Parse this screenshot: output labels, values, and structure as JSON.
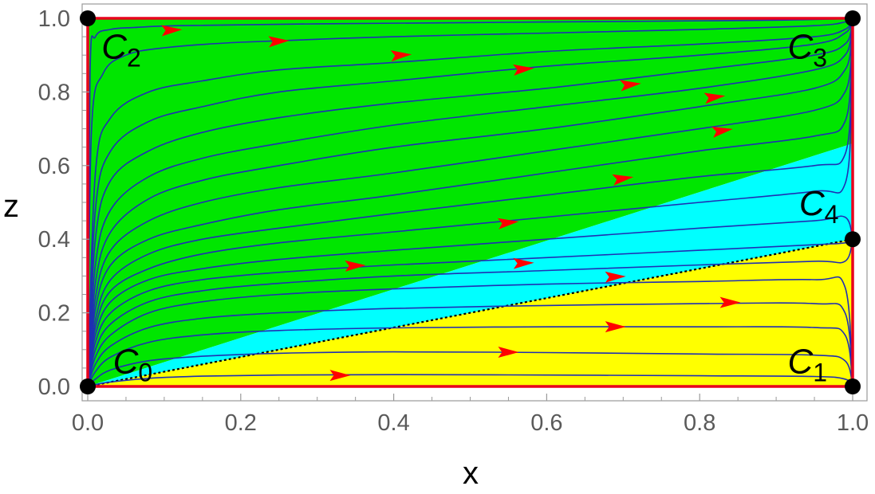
{
  "chart_data": {
    "type": "phase-portrait",
    "xlabel": "x",
    "ylabel": "z",
    "xlim": [
      0,
      1
    ],
    "ylim": [
      0,
      1
    ],
    "x_ticks": [
      "0.0",
      "0.2",
      "0.4",
      "0.6",
      "0.8",
      "1.0"
    ],
    "y_ticks": [
      "0.0",
      "0.2",
      "0.4",
      "0.6",
      "0.8",
      "1.0"
    ],
    "grid": false,
    "colors": {
      "green_region": "#00e600",
      "cyan_region": "#00ffff",
      "yellow_region": "#ffff00",
      "trajectory": "#1f2fb3",
      "arrow": "#ff0000",
      "boundary": "#e8001c",
      "separatrix": "#000000",
      "critical_point": "#000000"
    },
    "regions": [
      {
        "color": "green_region",
        "polygon": [
          [
            0,
            0
          ],
          [
            0,
            1
          ],
          [
            1,
            1
          ],
          [
            1,
            0.66
          ]
        ]
      },
      {
        "color": "cyan_region",
        "polygon": [
          [
            0,
            0
          ],
          [
            1,
            0.66
          ],
          [
            1,
            0.4
          ]
        ]
      },
      {
        "color": "yellow_region",
        "polygon": [
          [
            0,
            0
          ],
          [
            1,
            0.4
          ],
          [
            1,
            0
          ]
        ]
      }
    ],
    "separatrix": {
      "from": [
        0,
        0
      ],
      "to": [
        1,
        0.4
      ],
      "style": "dotted"
    },
    "critical_points": [
      {
        "label": "C",
        "sub": "0",
        "x": 0,
        "y": 0,
        "label_at": [
          0.033,
          0.07
        ]
      },
      {
        "label": "C",
        "sub": "1",
        "x": 1,
        "y": 0,
        "label_at": [
          0.915,
          0.07
        ]
      },
      {
        "label": "C",
        "sub": "2",
        "x": 0,
        "y": 1,
        "label_at": [
          0.018,
          0.925
        ]
      },
      {
        "label": "C",
        "sub": "3",
        "x": 1,
        "y": 1,
        "label_at": [
          0.915,
          0.925
        ]
      },
      {
        "label": "C",
        "sub": "4",
        "x": 1,
        "y": 0.4,
        "label_at": [
          0.93,
          0.5
        ]
      }
    ],
    "trajectories": [
      {
        "x": [
          0,
          0.01,
          0.03,
          0.08,
          0.15,
          0.25,
          0.4,
          0.6,
          0.8,
          0.95,
          0.99,
          1
        ],
        "y": [
          0,
          0.005,
          0.012,
          0.022,
          0.028,
          0.031,
          0.032,
          0.031,
          0.029,
          0.027,
          0.02,
          0
        ]
      },
      {
        "x": [
          0,
          0.01,
          0.03,
          0.08,
          0.15,
          0.25,
          0.4,
          0.6,
          0.8,
          0.95,
          0.99,
          1
        ],
        "y": [
          0,
          0.02,
          0.045,
          0.07,
          0.082,
          0.09,
          0.094,
          0.092,
          0.088,
          0.085,
          0.07,
          0
        ]
      },
      {
        "x": [
          0,
          0.01,
          0.03,
          0.08,
          0.15,
          0.25,
          0.4,
          0.6,
          0.8,
          0.95,
          0.99,
          1
        ],
        "y": [
          0,
          0.04,
          0.08,
          0.12,
          0.14,
          0.152,
          0.159,
          0.162,
          0.162,
          0.16,
          0.14,
          0
        ]
      },
      {
        "x": [
          0,
          0.01,
          0.03,
          0.08,
          0.15,
          0.25,
          0.4,
          0.6,
          0.8,
          0.95,
          0.99,
          1
        ],
        "y": [
          0,
          0.06,
          0.11,
          0.16,
          0.185,
          0.2,
          0.212,
          0.22,
          0.225,
          0.225,
          0.2,
          0
        ]
      },
      {
        "x": [
          0,
          0.01,
          0.03,
          0.08,
          0.15,
          0.25,
          0.4,
          0.6,
          0.8,
          0.95,
          0.99,
          1
        ],
        "y": [
          0,
          0.08,
          0.14,
          0.2,
          0.23,
          0.25,
          0.265,
          0.278,
          0.285,
          0.29,
          0.27,
          0
        ]
      },
      {
        "x": [
          0,
          0.01,
          0.03,
          0.08,
          0.15,
          0.25,
          0.4,
          0.6,
          0.8,
          0.95,
          0.99,
          1
        ],
        "y": [
          0,
          0.1,
          0.17,
          0.23,
          0.26,
          0.28,
          0.3,
          0.315,
          0.33,
          0.34,
          0.34,
          0.4
        ]
      },
      {
        "x": [
          0,
          0.01,
          0.03,
          0.08,
          0.15,
          0.25,
          0.4,
          0.6,
          0.8,
          0.95,
          0.99,
          1
        ],
        "y": [
          0,
          0.12,
          0.2,
          0.26,
          0.29,
          0.31,
          0.33,
          0.35,
          0.37,
          0.385,
          0.39,
          0.4
        ]
      },
      {
        "x": [
          0,
          0.01,
          0.03,
          0.08,
          0.15,
          0.25,
          0.4,
          0.6,
          0.8,
          0.95,
          0.99,
          1
        ],
        "y": [
          0,
          0.14,
          0.23,
          0.29,
          0.32,
          0.345,
          0.37,
          0.4,
          0.43,
          0.45,
          0.46,
          0.4
        ]
      },
      {
        "x": [
          0,
          0.01,
          0.03,
          0.08,
          0.15,
          0.25,
          0.4,
          0.6,
          0.8,
          0.95,
          0.99,
          0.999,
          1
        ],
        "y": [
          0,
          0.16,
          0.26,
          0.32,
          0.36,
          0.39,
          0.42,
          0.46,
          0.5,
          0.53,
          0.55,
          0.8,
          1
        ]
      },
      {
        "x": [
          0,
          0.01,
          0.03,
          0.08,
          0.15,
          0.25,
          0.4,
          0.6,
          0.8,
          0.95,
          0.99,
          0.999,
          1
        ],
        "y": [
          0,
          0.18,
          0.29,
          0.36,
          0.4,
          0.43,
          0.47,
          0.52,
          0.57,
          0.6,
          0.63,
          0.85,
          1
        ]
      },
      {
        "x": [
          0,
          0.01,
          0.03,
          0.08,
          0.15,
          0.25,
          0.4,
          0.6,
          0.8,
          0.95,
          0.99,
          0.999,
          1
        ],
        "y": [
          0,
          0.21,
          0.33,
          0.4,
          0.44,
          0.48,
          0.52,
          0.58,
          0.64,
          0.68,
          0.72,
          0.9,
          1
        ]
      },
      {
        "x": [
          0,
          0.01,
          0.03,
          0.08,
          0.15,
          0.25,
          0.4,
          0.6,
          0.8,
          0.95,
          0.99,
          0.999,
          1
        ],
        "y": [
          0,
          0.24,
          0.37,
          0.45,
          0.5,
          0.54,
          0.58,
          0.64,
          0.7,
          0.75,
          0.8,
          0.92,
          1
        ]
      },
      {
        "x": [
          0,
          0.01,
          0.03,
          0.08,
          0.15,
          0.25,
          0.4,
          0.6,
          0.8,
          0.95,
          0.99,
          0.999,
          1
        ],
        "y": [
          0,
          0.28,
          0.42,
          0.51,
          0.56,
          0.6,
          0.65,
          0.7,
          0.76,
          0.81,
          0.86,
          0.95,
          1
        ]
      },
      {
        "x": [
          0,
          0.01,
          0.03,
          0.08,
          0.15,
          0.25,
          0.4,
          0.6,
          0.8,
          0.95,
          0.99,
          0.999,
          1
        ],
        "y": [
          0,
          0.33,
          0.48,
          0.57,
          0.62,
          0.66,
          0.71,
          0.76,
          0.81,
          0.86,
          0.9,
          0.97,
          1
        ]
      },
      {
        "x": [
          0,
          0.01,
          0.03,
          0.08,
          0.15,
          0.25,
          0.4,
          0.6,
          0.8,
          0.95,
          0.99,
          0.999,
          1
        ],
        "y": [
          0,
          0.4,
          0.56,
          0.64,
          0.69,
          0.73,
          0.77,
          0.81,
          0.86,
          0.9,
          0.93,
          0.98,
          1
        ]
      },
      {
        "x": [
          0,
          0.01,
          0.03,
          0.08,
          0.15,
          0.25,
          0.4,
          0.6,
          0.8,
          0.95,
          0.99,
          0.999,
          1
        ],
        "y": [
          0,
          0.48,
          0.64,
          0.72,
          0.76,
          0.8,
          0.83,
          0.87,
          0.9,
          0.93,
          0.96,
          0.99,
          1
        ]
      },
      {
        "x": [
          0,
          0.01,
          0.03,
          0.08,
          0.15,
          0.25,
          0.4,
          0.6,
          0.8,
          0.95,
          0.99,
          0.999,
          1
        ],
        "y": [
          0,
          0.58,
          0.73,
          0.8,
          0.83,
          0.86,
          0.88,
          0.91,
          0.93,
          0.95,
          0.97,
          0.995,
          1
        ]
      },
      {
        "x": [
          0,
          0.005,
          0.02,
          0.05,
          0.1,
          0.2,
          0.4,
          0.6,
          0.8,
          0.95,
          0.99,
          1
        ],
        "y": [
          0,
          0.7,
          0.85,
          0.9,
          0.92,
          0.935,
          0.95,
          0.96,
          0.97,
          0.98,
          0.99,
          1
        ]
      },
      {
        "x": [
          0,
          0.003,
          0.01,
          0.03,
          0.06,
          0.12,
          0.3,
          0.6,
          0.9,
          1
        ],
        "y": [
          0,
          0.85,
          0.95,
          0.97,
          0.975,
          0.98,
          0.985,
          0.99,
          0.995,
          1
        ]
      }
    ],
    "arrows": [
      {
        "x": 0.33,
        "y": 0.03,
        "angle": 0
      },
      {
        "x": 0.55,
        "y": 0.093,
        "angle": 0
      },
      {
        "x": 0.69,
        "y": 0.162,
        "angle": 0
      },
      {
        "x": 0.84,
        "y": 0.228,
        "angle": 0
      },
      {
        "x": 0.69,
        "y": 0.298,
        "angle": -2
      },
      {
        "x": 0.35,
        "y": 0.328,
        "angle": -2
      },
      {
        "x": 0.57,
        "y": 0.335,
        "angle": -2
      },
      {
        "x": 0.55,
        "y": 0.445,
        "angle": -6
      },
      {
        "x": 0.7,
        "y": 0.565,
        "angle": -8
      },
      {
        "x": 0.83,
        "y": 0.695,
        "angle": -9
      },
      {
        "x": 0.82,
        "y": 0.786,
        "angle": -7
      },
      {
        "x": 0.71,
        "y": 0.82,
        "angle": -6
      },
      {
        "x": 0.57,
        "y": 0.862,
        "angle": -5
      },
      {
        "x": 0.41,
        "y": 0.9,
        "angle": -4
      },
      {
        "x": 0.25,
        "y": 0.938,
        "angle": -3
      },
      {
        "x": 0.11,
        "y": 0.968,
        "angle": -3
      }
    ]
  }
}
